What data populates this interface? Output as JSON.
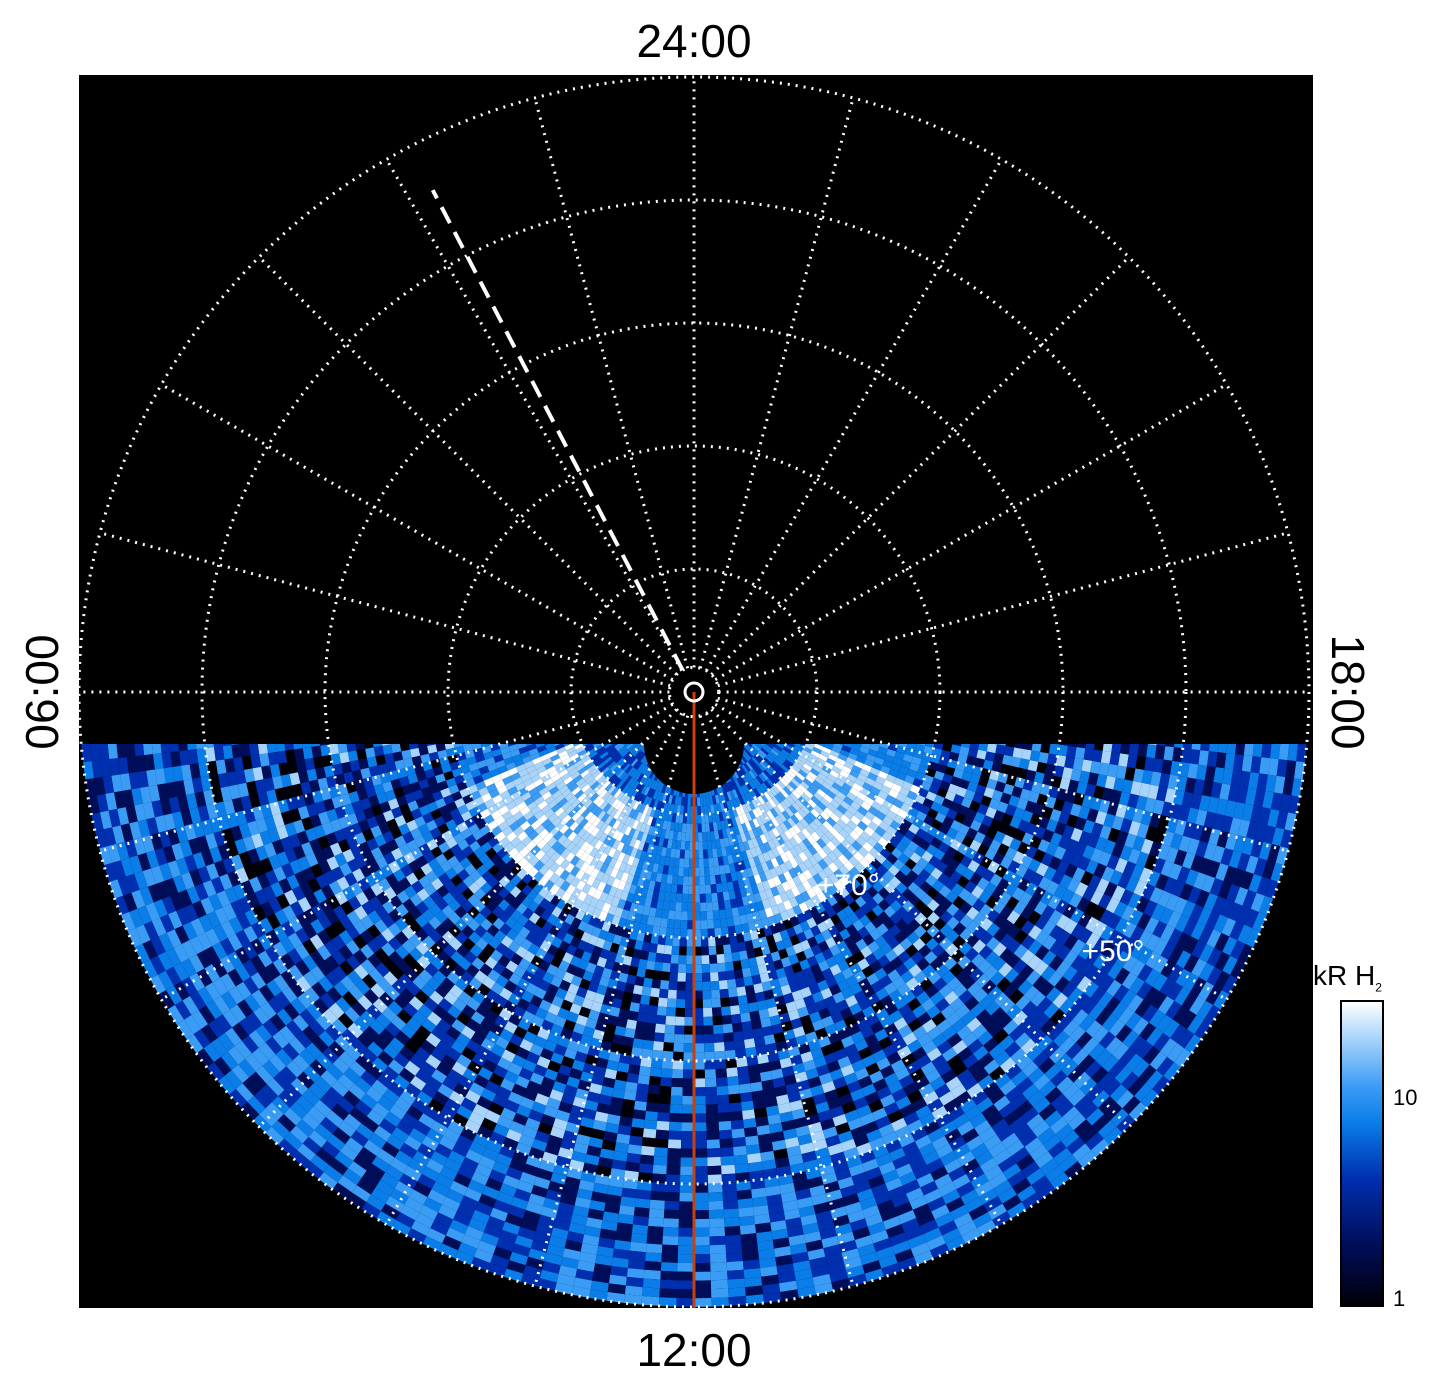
{
  "chart_data": {
    "type": "heatmap",
    "projection": "polar",
    "local_time_labels": {
      "top": "24:00",
      "bottom": "12:00",
      "left": "06:00",
      "right": "18:00"
    },
    "latitude_labels": [
      "+70°",
      "+50°"
    ],
    "colorbar": {
      "title": "kR H",
      "title_subscript": "2",
      "scale": "log",
      "ticks": [
        "10",
        "1"
      ],
      "range": [
        1,
        30
      ],
      "colors": [
        "#000008",
        "#000e5a",
        "#0030b0",
        "#0a7de8",
        "#3b9cf5",
        "#a8d4fb",
        "#ffffff"
      ]
    },
    "grid": "dotted",
    "latitude_circles": [
      40,
      50,
      60,
      70,
      80,
      88
    ],
    "meridian_spacing_hours": 1,
    "dashed_meridian_local_time": "01:50",
    "noon_meridian_color": "#c8410a",
    "auroral_oval": {
      "colatitude_inner": 10,
      "colatitude_outer": 20,
      "intensity_kR": 25
    }
  }
}
